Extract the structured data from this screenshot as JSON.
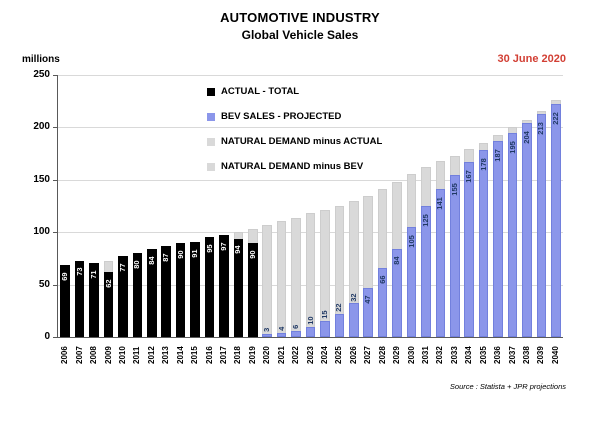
{
  "header": {
    "title": "AUTOMOTIVE INDUSTRY",
    "subtitle": "Global Vehicle Sales",
    "date_label": "30 June 2020"
  },
  "axis": {
    "unit_label": "millions",
    "yticks": [
      0,
      50,
      100,
      150,
      200,
      250
    ]
  },
  "legend": {
    "items": [
      {
        "label": "ACTUAL - TOTAL",
        "color": "#000000"
      },
      {
        "label": "BEV SALES - PROJECTED",
        "color": "#8b96ea"
      },
      {
        "label": "NATURAL DEMAND minus ACTUAL",
        "color": "#d9d9d9"
      },
      {
        "label": "NATURAL DEMAND minus BEV",
        "color": "#d9d9d9"
      }
    ]
  },
  "source": "Source : Statista + JPR projections",
  "colors": {
    "actual": "#000000",
    "bev_fill": "#8b96ea",
    "bev_border": "#7280dd",
    "gray_fill": "#d9d9d9",
    "label_on_actual": "#ffffff",
    "label_on_bev": "#1f3864",
    "date_red": "#d23f34",
    "gridline": "#d9d9d9",
    "axis": "#595959"
  },
  "chart_data": {
    "type": "bar",
    "stacked": true,
    "title": "AUTOMOTIVE INDUSTRY",
    "subtitle": "Global Vehicle Sales",
    "ylabel": "millions",
    "ylim": [
      0,
      250
    ],
    "grid": true,
    "legend_position": "upper-left-inside",
    "categories": [
      "2006",
      "2007",
      "2008",
      "2009",
      "2010",
      "2011",
      "2012",
      "2013",
      "2014",
      "2015",
      "2016",
      "2017",
      "2018",
      "2019",
      "2020",
      "2021",
      "2022",
      "2023",
      "2024",
      "2025",
      "2026",
      "2027",
      "2028",
      "2029",
      "2030",
      "2031",
      "2032",
      "2033",
      "2034",
      "2035",
      "2036",
      "2037",
      "2038",
      "2039",
      "2040"
    ],
    "series": [
      {
        "name": "ACTUAL - TOTAL",
        "values": [
          69,
          73,
          71,
          62,
          77,
          80,
          84,
          87,
          90,
          91,
          95,
          97,
          94,
          90,
          null,
          null,
          null,
          null,
          null,
          null,
          null,
          null,
          null,
          null,
          null,
          null,
          null,
          null,
          null,
          null,
          null,
          null,
          null,
          null,
          null
        ]
      },
      {
        "name": "BEV SALES - PROJECTED",
        "values": [
          null,
          null,
          null,
          null,
          null,
          null,
          null,
          null,
          null,
          null,
          null,
          null,
          null,
          null,
          3,
          4,
          6,
          10,
          15,
          22,
          32,
          47,
          66,
          84,
          105,
          125,
          141,
          155,
          167,
          178,
          187,
          195,
          204,
          213,
          222
        ]
      },
      {
        "name": "NATURAL DEMAND (total bar top, estimated from gridlines)",
        "values": [
          null,
          null,
          null,
          73,
          null,
          null,
          null,
          null,
          null,
          null,
          null,
          null,
          100,
          103,
          107,
          111,
          114,
          118,
          121,
          125,
          130,
          135,
          141,
          148,
          156,
          162,
          168,
          173,
          179,
          185,
          193,
          200,
          207,
          216,
          226
        ]
      }
    ]
  }
}
